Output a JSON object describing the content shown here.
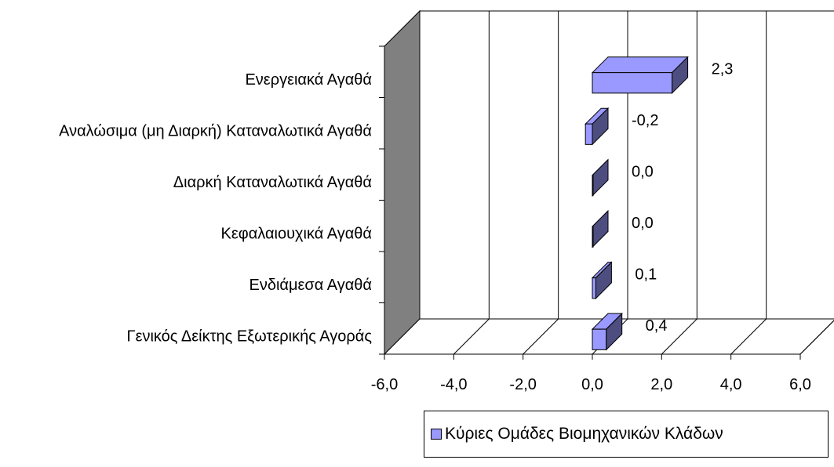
{
  "chart_data": {
    "type": "bar",
    "orientation": "horizontal",
    "three_d": true,
    "categories": [
      "Γενικός Δείκτης Εξωτερικής Αγοράς",
      "Ενδιάμεσα Αγαθά",
      "Κεφαλαιουχικά Αγαθά",
      "Διαρκή Καταναλωτικά Αγαθά",
      "Αναλώσιμα (μη Διαρκή) Καταναλωτικά Αγαθά",
      "Ενεργειακά Αγαθά"
    ],
    "series": [
      {
        "name": "Κύριες Ομάδες Βιομηχανικών Κλάδων",
        "values": [
          0.4,
          0.1,
          0.0,
          0.0,
          -0.2,
          2.3
        ],
        "data_labels": [
          "0,4",
          "0,1",
          "0,0",
          "0,0",
          "-0,2",
          "2,3"
        ]
      }
    ],
    "xlim": [
      -6,
      6
    ],
    "x_ticks": [
      "-6,0",
      "-4,0",
      "-2,0",
      "0,0",
      "2,0",
      "4,0",
      "6,0"
    ],
    "grid": true,
    "legend_position": "bottom-right",
    "colors": {
      "bar": "#9999ff",
      "wall": "#808080",
      "gridline": "#000000"
    }
  }
}
